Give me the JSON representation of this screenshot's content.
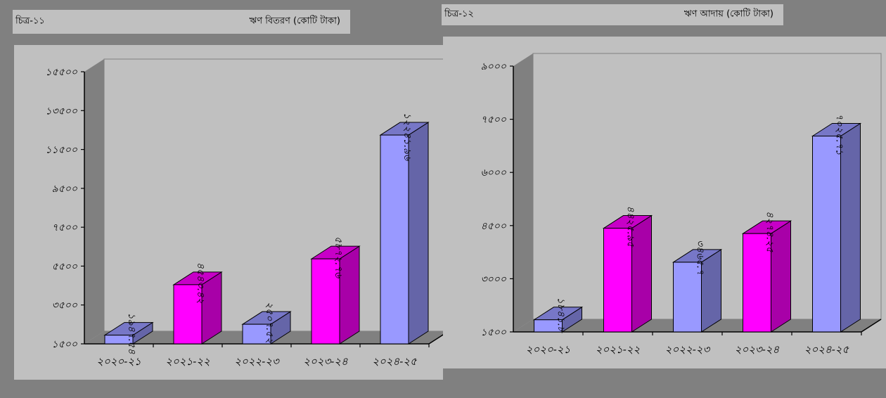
{
  "chart_data": [
    {
      "type": "bar",
      "figure_label": "চিত্র-১১",
      "title": "ঋণ বিতরণ (কোটি টাকা)",
      "categories": [
        "২০২০-২১",
        "২০২১-২২",
        "২০২২-২৩",
        "২০২৩-২৪",
        "২০২৪-২৫"
      ],
      "values": [
        1947.54,
        4543.42,
        2507.52,
        5872.76,
        12241.96
      ],
      "value_labels": [
        "১৯৪৭.৫৪",
        "৪৫৪৩.৪২",
        "২৫০৭.৫২",
        "৫৮৭২.৭৬",
        "১২২৪১.৯৬"
      ],
      "yticks": [
        1500,
        3500,
        5500,
        7500,
        9500,
        11500,
        13500,
        15500
      ],
      "ytick_labels": [
        "১৫০০",
        "৩৫০০",
        "৫৫০০",
        "৭৫০০",
        "৯৫০০",
        "১১৫০০",
        "১৩৫০০",
        "১৫৫০০"
      ],
      "ylim": [
        1500,
        15500
      ],
      "bar_colors": [
        "#9999ff",
        "#ff00ff",
        "#9999ff",
        "#ff00ff",
        "#9999ff"
      ]
    },
    {
      "type": "bar",
      "figure_label": "চিত্র-১২",
      "title": "ঋণ আদায় (কোটি টাকা)",
      "categories": [
        "২০২০-২১",
        "২০২১-২২",
        "২০২২-২৩",
        "২০২৩-২৪",
        "২০২৪-২৫"
      ],
      "values": [
        1841.8,
        4425.95,
        3465.7,
        4274.25,
        7025.71
      ],
      "value_labels": [
        "১৮৪১.৮",
        "৪৪২৫.৯৫",
        "৩৪৬৫.৭",
        "৪২৭৪.২৫",
        "৭০২৫.৭১"
      ],
      "yticks": [
        1500,
        3000,
        4500,
        6000,
        7500,
        9000
      ],
      "ytick_labels": [
        "১৫০০",
        "৩০০০",
        "৪৫০০",
        "৬০০০",
        "৭৫০০",
        "৯০০০"
      ],
      "ylim": [
        1500,
        9000
      ],
      "bar_colors": [
        "#9999ff",
        "#ff00ff",
        "#9999ff",
        "#ff00ff",
        "#9999ff"
      ]
    }
  ]
}
